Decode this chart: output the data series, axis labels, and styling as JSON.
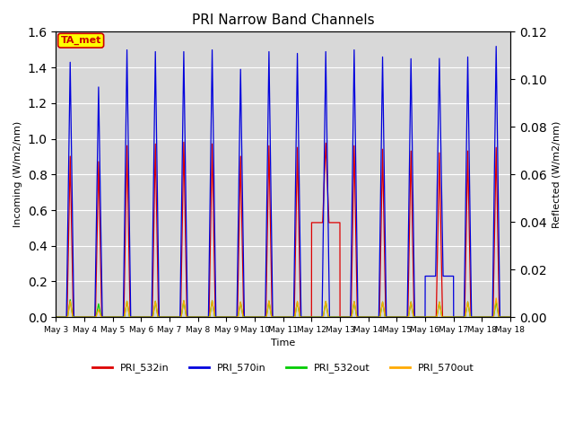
{
  "title": "PRI Narrow Band Channels",
  "xlabel": "Time",
  "ylabel_left": "Incoming (W/m2/nm)",
  "ylabel_right": "Reflected (W/m2/nm)",
  "annotation": "TA_met",
  "annotation_color": "#cc0000",
  "annotation_bg": "#ffff00",
  "annotation_border": "#cc0000",
  "ylim_left": [
    0.0,
    1.6
  ],
  "ylim_right": [
    0.0,
    0.12
  ],
  "plot_bg": "#d8d8d8",
  "fig_bg": "#ffffff",
  "series": {
    "PRI_532in": {
      "color": "#dd0000",
      "lw": 0.9,
      "zorder": 3
    },
    "PRI_570in": {
      "color": "#0000dd",
      "lw": 0.9,
      "zorder": 4
    },
    "PRI_532out": {
      "color": "#00cc00",
      "lw": 0.9,
      "zorder": 5
    },
    "PRI_570out": {
      "color": "#ffaa00",
      "lw": 0.9,
      "zorder": 6
    }
  },
  "legend_series": [
    "PRI_532in",
    "PRI_570in",
    "PRI_532out",
    "PRI_570out"
  ],
  "legend_colors": [
    "#dd0000",
    "#0000dd",
    "#00cc00",
    "#ffaa00"
  ],
  "num_days": 16,
  "day_labels": [
    "May 3",
    "May 4",
    "May 5",
    "May 6",
    "May 7",
    "May 8",
    "May 9",
    "May 10",
    "May 11",
    "May 12",
    "May 13",
    "May 14",
    "May 15",
    "May 16",
    "May 17",
    "May 18"
  ],
  "peak_532in": [
    0.91,
    0.88,
    0.97,
    0.98,
    0.99,
    0.98,
    0.91,
    0.97,
    0.96,
    0.98,
    0.97,
    0.95,
    0.94,
    0.93,
    0.94,
    0.96
  ],
  "peak_570in": [
    1.44,
    1.3,
    1.51,
    1.5,
    1.5,
    1.51,
    1.4,
    1.5,
    1.49,
    1.5,
    1.51,
    1.47,
    1.46,
    1.46,
    1.47,
    1.53
  ],
  "peak_532out": [
    1.32,
    1.01,
    1.21,
    1.21,
    1.24,
    1.24,
    1.14,
    1.22,
    1.15,
    1.19,
    1.18,
    1.15,
    1.16,
    1.15,
    1.16,
    1.2
  ],
  "peak_570out": [
    1.21,
    0.58,
    1.2,
    1.2,
    1.26,
    1.25,
    1.15,
    1.24,
    1.2,
    1.2,
    1.19,
    1.16,
    1.15,
    1.15,
    1.16,
    1.44
  ],
  "min_532in": [
    0.0,
    0.0,
    0.0,
    0.0,
    0.0,
    0.0,
    0.0,
    0.0,
    0.0,
    0.53,
    0.0,
    0.0,
    0.0,
    0.0,
    0.0,
    0.0
  ],
  "min_570in": [
    0.0,
    0.0,
    0.0,
    0.0,
    0.0,
    0.0,
    0.0,
    0.0,
    0.0,
    0.0,
    0.0,
    0.0,
    0.0,
    0.23,
    0.0,
    0.0
  ],
  "right_yticks": [
    0.0,
    0.02,
    0.04,
    0.06,
    0.08,
    0.1,
    0.12
  ],
  "left_yticks": [
    0.0,
    0.2,
    0.4,
    0.6,
    0.8,
    1.0,
    1.2,
    1.4,
    1.6
  ]
}
